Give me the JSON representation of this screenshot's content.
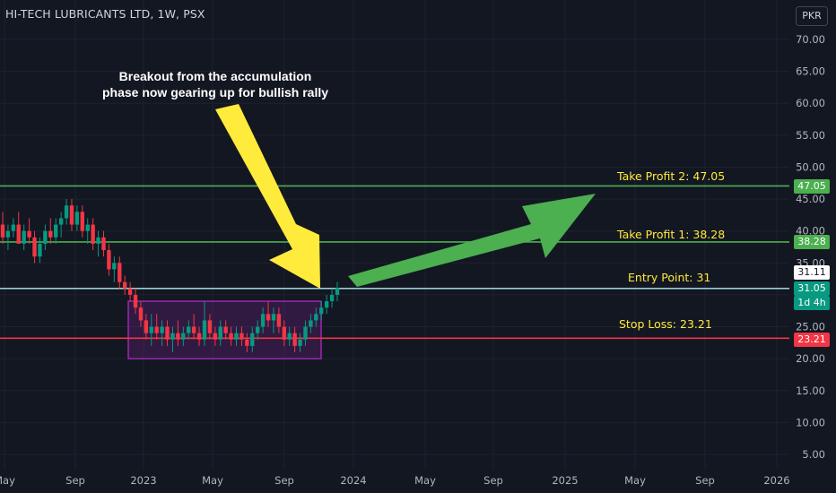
{
  "header": {
    "symbol_title": "HI-TECH LUBRICANTS LTD, 1W, PSX",
    "currency": "PKR"
  },
  "annotation": {
    "line1": "Breakout from the accumulation",
    "line2": "phase now gearing up for bullish rally"
  },
  "levels": {
    "tp2": {
      "label": "Take Profit 2: 47.05",
      "value": 47.05,
      "tag": "47.05",
      "color": "#4caf50"
    },
    "tp1": {
      "label": "Take Profit 1: 38.28",
      "value": 38.28,
      "tag": "38.28",
      "color": "#4caf50"
    },
    "entry": {
      "label": "Entry Point: 31",
      "value": 31,
      "color": "#b2ebf2"
    },
    "stop": {
      "label": "Stop Loss: 23.21",
      "value": 23.21,
      "tag": "23.21",
      "color": "#f23645"
    }
  },
  "price_tags": {
    "last_close": "31.11",
    "current": "31.05",
    "countdown": "1d 4h"
  },
  "colors": {
    "up": "#089981",
    "down": "#f23645",
    "box": "#9c27b0",
    "arrow_green": "#4caf50",
    "arrow_yellow": "#ffeb3b"
  },
  "chart_data": {
    "type": "candlestick",
    "title": "HI-TECH LUBRICANTS LTD, 1W, PSX",
    "ylim": [
      2.5,
      75
    ],
    "y_ticks": [
      "70.00",
      "65.00",
      "60.00",
      "55.00",
      "50.00",
      "45.00",
      "40.00",
      "35.00",
      "30.00",
      "25.00",
      "20.00",
      "15.00",
      "10.00",
      "5.00"
    ],
    "x_ticks": [
      "May",
      "Sep",
      "2023",
      "May",
      "Sep",
      "2024",
      "May",
      "Sep",
      "2025",
      "May",
      "Sep",
      "2026"
    ],
    "accumulation_box": {
      "x_start": "2022-11",
      "x_end": "2023-11",
      "y_low": 20,
      "y_high": 29
    },
    "candles": [
      [
        41,
        43,
        38,
        39
      ],
      [
        39,
        41,
        37,
        40
      ],
      [
        40,
        42,
        39,
        41
      ],
      [
        41,
        43,
        38,
        38
      ],
      [
        38,
        41,
        37,
        40
      ],
      [
        40,
        42,
        38,
        39
      ],
      [
        39,
        40,
        35,
        36
      ],
      [
        36,
        39,
        35,
        38
      ],
      [
        38,
        41,
        37,
        40
      ],
      [
        40,
        42,
        38,
        39
      ],
      [
        39,
        42,
        38,
        41
      ],
      [
        41,
        43,
        39,
        42
      ],
      [
        42,
        45,
        41,
        44
      ],
      [
        44,
        45,
        40,
        41
      ],
      [
        41,
        44,
        40,
        43
      ],
      [
        43,
        44,
        39,
        40
      ],
      [
        40,
        42,
        38,
        41
      ],
      [
        41,
        42,
        37,
        38
      ],
      [
        38,
        40,
        36,
        39
      ],
      [
        39,
        40,
        36,
        37
      ],
      [
        37,
        38,
        33,
        34
      ],
      [
        34,
        36,
        32,
        35
      ],
      [
        35,
        36,
        31,
        32
      ],
      [
        32,
        33,
        30,
        31
      ],
      [
        31,
        32,
        29,
        30
      ],
      [
        30,
        31,
        27,
        28
      ],
      [
        28,
        29,
        25,
        26
      ],
      [
        26,
        27,
        23,
        24
      ],
      [
        24,
        27,
        22,
        25
      ],
      [
        25,
        27,
        23,
        24
      ],
      [
        24,
        26,
        22,
        25
      ],
      [
        25,
        26,
        22,
        23
      ],
      [
        23,
        25,
        21,
        24
      ],
      [
        24,
        26,
        22,
        23
      ],
      [
        23,
        25,
        22,
        24
      ],
      [
        24,
        26,
        23,
        25
      ],
      [
        25,
        27,
        23,
        24
      ],
      [
        24,
        25,
        22,
        23
      ],
      [
        23,
        29,
        22,
        26
      ],
      [
        26,
        27,
        23,
        24
      ],
      [
        24,
        25,
        22,
        23
      ],
      [
        23,
        26,
        22,
        25
      ],
      [
        25,
        26,
        23,
        24
      ],
      [
        24,
        25,
        22,
        23
      ],
      [
        23,
        25,
        22,
        24
      ],
      [
        24,
        25,
        22,
        23
      ],
      [
        23,
        24,
        21,
        22
      ],
      [
        22,
        25,
        21,
        24
      ],
      [
        24,
        26,
        23,
        25
      ],
      [
        25,
        28,
        24,
        27
      ],
      [
        27,
        29,
        25,
        26
      ],
      [
        26,
        28,
        24,
        27
      ],
      [
        27,
        28,
        24,
        25
      ],
      [
        25,
        26,
        22,
        23
      ],
      [
        23,
        25,
        22,
        24
      ],
      [
        24,
        25,
        21,
        22
      ],
      [
        22,
        24,
        21,
        23
      ],
      [
        23,
        26,
        22,
        25
      ],
      [
        25,
        27,
        24,
        26
      ],
      [
        26,
        28,
        25,
        27
      ],
      [
        27,
        29,
        26,
        28
      ],
      [
        28,
        30,
        27,
        29
      ],
      [
        29,
        31,
        28,
        30
      ],
      [
        30,
        32,
        29,
        31.05
      ]
    ]
  }
}
